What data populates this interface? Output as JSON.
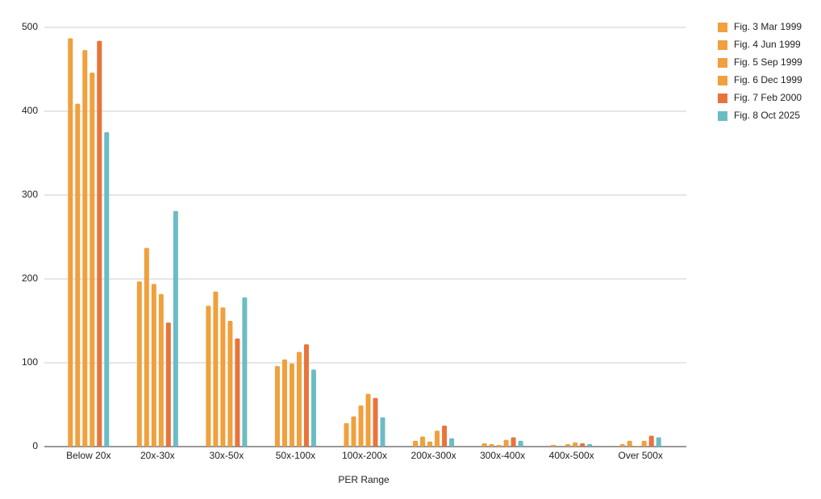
{
  "chart_data": {
    "type": "bar",
    "x_label": "PER Range",
    "categories": [
      "Below 20x",
      "20x-30x",
      "30x-50x",
      "50x-100x",
      "100x-200x",
      "200x-300x",
      "300x-400x",
      "400x-500x",
      "Over 500x"
    ],
    "series": [
      {
        "name": "Fig. 3 Mar 1999",
        "color": "#f0a03c",
        "values": [
          487,
          197,
          168,
          96,
          28,
          7,
          4,
          2,
          3
        ]
      },
      {
        "name": "Fig. 4 Jun 1999",
        "color": "#f0a03c",
        "values": [
          409,
          237,
          185,
          104,
          36,
          12,
          3,
          0,
          7
        ]
      },
      {
        "name": "Fig. 5 Sep 1999",
        "color": "#f0a03c",
        "values": [
          473,
          194,
          166,
          99,
          49,
          6,
          2,
          3,
          1
        ]
      },
      {
        "name": "Fig. 6 Dec 1999",
        "color": "#f0a03c",
        "values": [
          446,
          182,
          150,
          113,
          63,
          19,
          8,
          5,
          7
        ]
      },
      {
        "name": "Fig. 7 Feb 2000",
        "color": "#e8743b",
        "values": [
          484,
          148,
          129,
          122,
          58,
          25,
          11,
          4,
          13
        ]
      },
      {
        "name": "Fig. 8 Oct 2025",
        "color": "#6cbcc4",
        "values": [
          375,
          281,
          178,
          92,
          35,
          10,
          7,
          3,
          11
        ]
      }
    ],
    "ylim": [
      0,
      500
    ],
    "yticks": [
      0,
      100,
      200,
      300,
      400,
      500
    ],
    "grid": true,
    "legend": "right"
  }
}
